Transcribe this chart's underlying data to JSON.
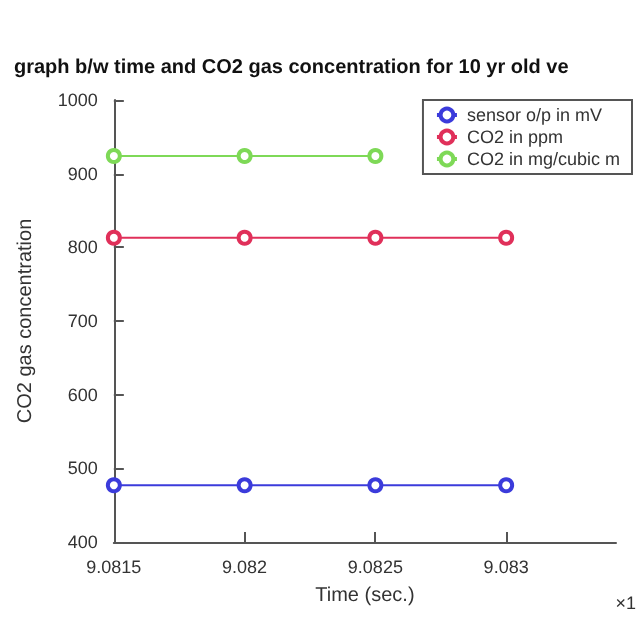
{
  "chart_data": {
    "type": "line",
    "title": "graph b/w time and CO2 gas concentration for 10 yr old ve",
    "xlabel": "Time (sec.)",
    "ylabel": "CO2 gas concentration",
    "x": [
      9.0815,
      9.082,
      9.0825,
      9.083
    ],
    "series": [
      {
        "name": "sensor o/p in mV",
        "color": "#3b3bdb",
        "values": [
          477,
          477,
          477,
          477
        ]
      },
      {
        "name": "CO2 in ppm",
        "color": "#e0305a",
        "values": [
          813,
          813,
          813,
          813
        ]
      },
      {
        "name": "CO2 in mg/cubic m",
        "color": "#7ed957",
        "values": [
          924,
          924,
          924,
          null
        ]
      }
    ],
    "xlim": [
      9.0815,
      9.08342
    ],
    "xticks": [
      9.0815,
      9.082,
      9.0825,
      9.083
    ],
    "ylim": [
      400,
      1000
    ],
    "yticks": [
      400,
      500,
      600,
      700,
      800,
      900,
      1000
    ],
    "annotations": [
      "×1"
    ],
    "legend": "top right",
    "grid": false,
    "marker": "circle",
    "line_style": "solid"
  }
}
